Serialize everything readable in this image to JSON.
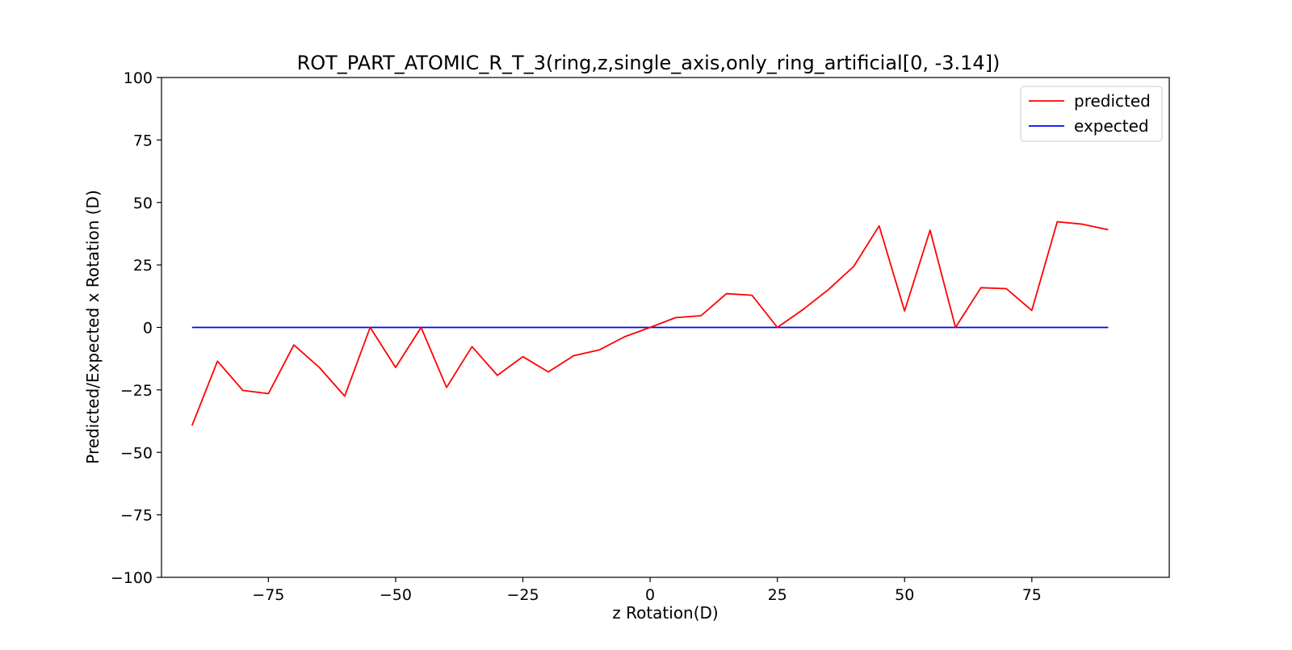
{
  "chart_data": {
    "type": "line",
    "title": "ROT_PART_ATOMIC_R_T_3(ring,z,single_axis,only_ring_artificial[0, -3.14])",
    "xlabel": "z Rotation(D)",
    "ylabel": "Predicted/Expected x Rotation (D)",
    "xlim": [
      -96,
      102
    ],
    "ylim": [
      -100,
      100
    ],
    "xticks": [
      -75,
      -50,
      -25,
      0,
      25,
      50,
      75
    ],
    "xtick_labels": [
      "−75",
      "−50",
      "−25",
      "0",
      "25",
      "50",
      "75"
    ],
    "yticks": [
      100,
      75,
      50,
      25,
      0,
      -25,
      -50,
      -75,
      -100
    ],
    "ytick_labels": [
      "100",
      "75",
      "50",
      "25",
      "0",
      "−25",
      "−50",
      "−75",
      "−100"
    ],
    "grid": false,
    "legend_position": "top-right",
    "x": [
      -90,
      -85,
      -80,
      -75,
      -70,
      -65,
      -60,
      -55,
      -50,
      -45,
      -40,
      -35,
      -30,
      -25,
      -20,
      -15,
      -10,
      -5,
      0,
      5,
      10,
      15,
      20,
      25,
      30,
      35,
      40,
      45,
      50,
      55,
      60,
      65,
      70,
      75,
      80,
      85,
      90
    ],
    "series": [
      {
        "name": "predicted",
        "color": "#ff0000",
        "values": [
          -39.3,
          -13.5,
          -25.2,
          -26.5,
          -7,
          -16,
          -27.5,
          0,
          -16,
          0,
          -24,
          -7.7,
          -19.2,
          -11.7,
          -17.8,
          -11.3,
          -9,
          -3.7,
          0,
          3.9,
          4.7,
          13.5,
          12.9,
          0,
          7.1,
          15.1,
          24.4,
          40.6,
          6.6,
          38.9,
          0,
          15.9,
          15.5,
          6.8,
          42.3,
          41.3,
          39.1
        ]
      },
      {
        "name": "expected",
        "color": "#0000ff",
        "values": [
          0,
          0,
          0,
          0,
          0,
          0,
          0,
          0,
          0,
          0,
          0,
          0,
          0,
          0,
          0,
          0,
          0,
          0,
          0,
          0,
          0,
          0,
          0,
          0,
          0,
          0,
          0,
          0,
          0,
          0,
          0,
          0,
          0,
          0,
          0,
          0,
          0
        ]
      }
    ]
  }
}
